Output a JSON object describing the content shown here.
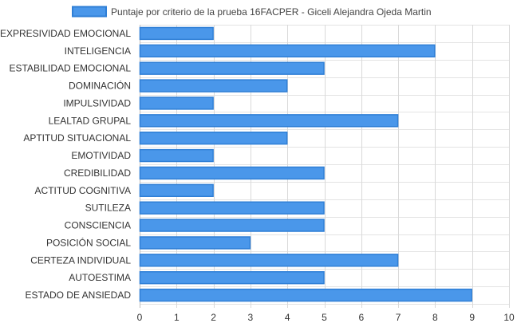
{
  "chart_data": {
    "type": "bar",
    "orientation": "horizontal",
    "legend": {
      "position": "top",
      "label": "Puntaje por criterio de la prueba 16FACPER - Giceli Alejandra Ojeda Martin"
    },
    "categories": [
      "EXPRESIVIDAD EMOCIONAL",
      "INTELIGENCIA",
      "ESTABILIDAD EMOCIONAL",
      "DOMINACIÓN",
      "IMPULSIVIDAD",
      "LEALTAD GRUPAL",
      "APTITUD SITUACIONAL",
      "EMOTIVIDAD",
      "CREDIBILIDAD",
      "ACTITUD COGNITIVA",
      "SUTILEZA",
      "CONSCIENCIA",
      "POSICIÓN SOCIAL",
      "CERTEZA INDIVIDUAL",
      "AUTOESTIMA",
      "ESTADO DE ANSIEDAD"
    ],
    "series": [
      {
        "name": "Puntaje por criterio de la prueba 16FACPER - Giceli Alejandra Ojeda Martin",
        "values": [
          2,
          8,
          5,
          4,
          2,
          7,
          4,
          2,
          5,
          2,
          5,
          5,
          3,
          7,
          5,
          9
        ]
      }
    ],
    "xlim": [
      0,
      10
    ],
    "x_ticks": [
      "0",
      "1",
      "2",
      "3",
      "4",
      "5",
      "6",
      "7",
      "8",
      "9",
      "10"
    ],
    "grid": true,
    "bar_color": "#4a97ea",
    "bar_border_color": "#2f7fd6"
  }
}
